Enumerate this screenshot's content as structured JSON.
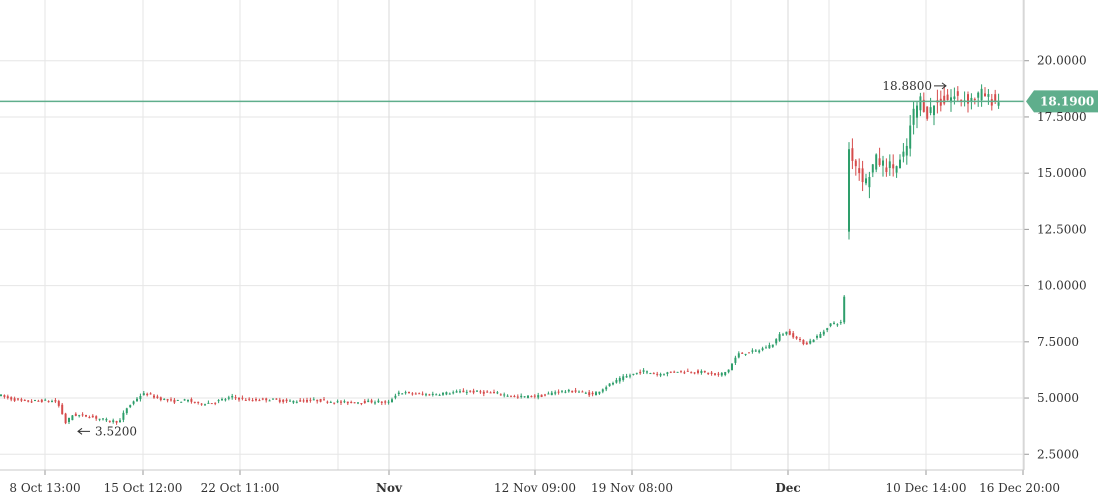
{
  "chart_data": {
    "type": "candlestick",
    "title": "",
    "xlabel": "",
    "ylabel": "",
    "ylim": [
      1.8,
      22.7
    ],
    "grid": true,
    "y_ticks": [
      "2.5000",
      "5.0000",
      "7.5000",
      "10.0000",
      "12.5000",
      "15.0000",
      "17.5000",
      "20.0000"
    ],
    "x_ticks": [
      {
        "label": "8 Oct 13:00",
        "bold": false
      },
      {
        "label": "15 Oct 12:00",
        "bold": false
      },
      {
        "label": "22 Oct 11:00",
        "bold": false
      },
      {
        "label": "Nov",
        "bold": true
      },
      {
        "label": "12 Nov 09:00",
        "bold": false
      },
      {
        "label": "19 Nov 08:00",
        "bold": false
      },
      {
        "label": "Dec",
        "bold": true
      },
      {
        "label": "10 Dec 14:00",
        "bold": false
      },
      {
        "label": "16 Dec 20:00",
        "bold": false
      }
    ],
    "current_price": {
      "value": 18.19,
      "label": "18.1900",
      "color": "#5fae8c"
    },
    "annotations": [
      {
        "label": "3.5200",
        "value": 3.52,
        "kind": "low",
        "arrow": "left"
      },
      {
        "label": "18.8800",
        "value": 18.88,
        "kind": "high",
        "arrow": "right"
      }
    ],
    "colors": {
      "up": "#2e9e6b",
      "down": "#d64b4b",
      "grid": "#e6e6e6"
    },
    "path_keypoints": [
      [
        0,
        5.15
      ],
      [
        10,
        5.0
      ],
      [
        25,
        4.85
      ],
      [
        45,
        4.88
      ],
      [
        58,
        4.85
      ],
      [
        62,
        4.6
      ],
      [
        68,
        3.9
      ],
      [
        75,
        4.25
      ],
      [
        90,
        4.2
      ],
      [
        110,
        4.0
      ],
      [
        122,
        3.95
      ],
      [
        128,
        4.5
      ],
      [
        135,
        4.8
      ],
      [
        142,
        5.1
      ],
      [
        148,
        5.2
      ],
      [
        160,
        5.0
      ],
      [
        175,
        4.85
      ],
      [
        190,
        4.9
      ],
      [
        200,
        4.75
      ],
      [
        215,
        4.8
      ],
      [
        235,
        5.05
      ],
      [
        250,
        4.9
      ],
      [
        270,
        4.95
      ],
      [
        290,
        4.85
      ],
      [
        320,
        4.9
      ],
      [
        345,
        4.8
      ],
      [
        380,
        4.85
      ],
      [
        390,
        4.75
      ],
      [
        400,
        5.25
      ],
      [
        430,
        5.15
      ],
      [
        470,
        5.3
      ],
      [
        500,
        5.2
      ],
      [
        520,
        5.05
      ],
      [
        545,
        5.1
      ],
      [
        560,
        5.3
      ],
      [
        580,
        5.3
      ],
      [
        595,
        5.15
      ],
      [
        612,
        5.6
      ],
      [
        625,
        5.9
      ],
      [
        645,
        6.2
      ],
      [
        660,
        6.05
      ],
      [
        680,
        6.2
      ],
      [
        705,
        6.15
      ],
      [
        720,
        6.0
      ],
      [
        730,
        6.2
      ],
      [
        740,
        6.95
      ],
      [
        760,
        7.1
      ],
      [
        775,
        7.4
      ],
      [
        782,
        7.8
      ],
      [
        790,
        7.95
      ],
      [
        800,
        7.6
      ],
      [
        808,
        7.4
      ],
      [
        815,
        7.6
      ],
      [
        825,
        7.9
      ],
      [
        832,
        8.3
      ],
      [
        846,
        8.35
      ],
      [
        850,
        16.2
      ],
      [
        860,
        15.2
      ],
      [
        868,
        14.6
      ],
      [
        878,
        15.6
      ],
      [
        888,
        15.3
      ],
      [
        900,
        15.3
      ],
      [
        908,
        15.9
      ],
      [
        915,
        17.6
      ],
      [
        923,
        18.3
      ],
      [
        930,
        17.6
      ],
      [
        936,
        18.05
      ],
      [
        945,
        18.2
      ],
      [
        955,
        18.4
      ],
      [
        965,
        18.3
      ],
      [
        975,
        18.3
      ],
      [
        985,
        18.55
      ],
      [
        990,
        18.3
      ],
      [
        1000,
        18.19
      ]
    ]
  }
}
